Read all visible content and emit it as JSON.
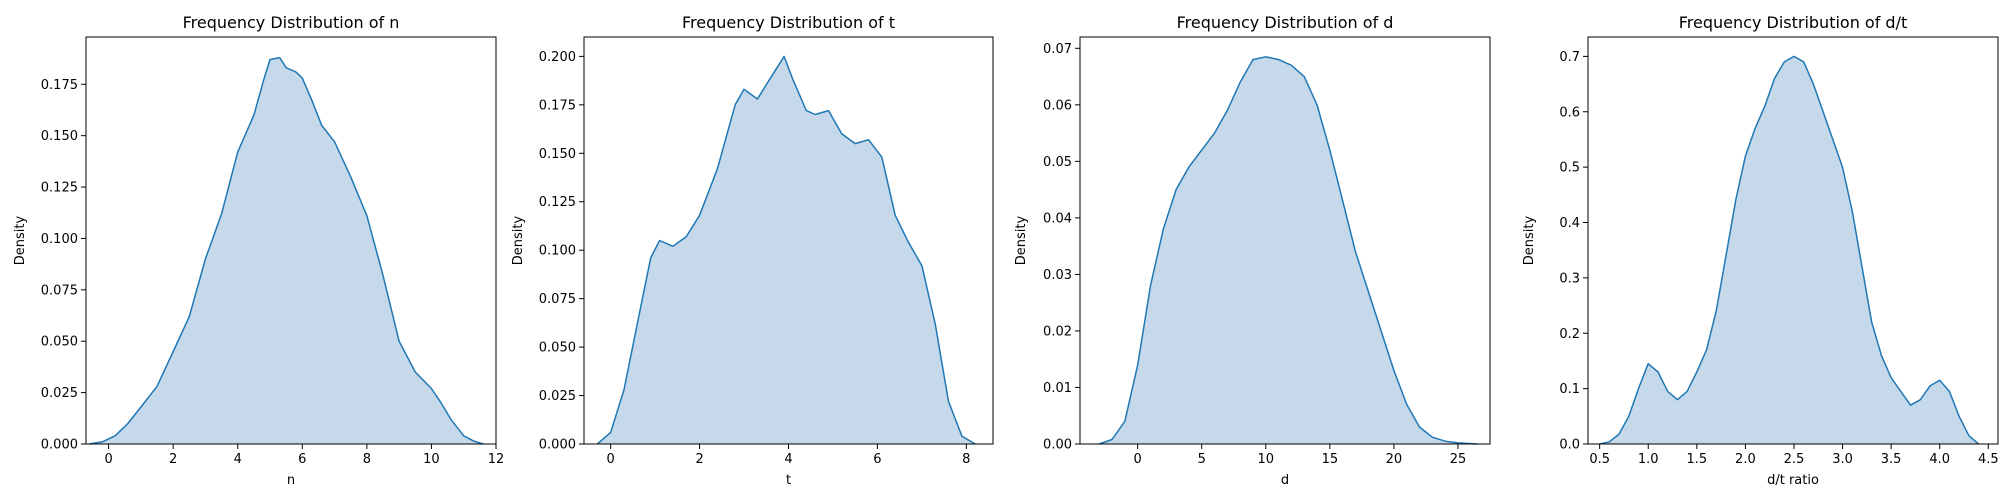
{
  "colors": {
    "line": "#1f77b4",
    "fill": "#c5d9eb",
    "axis": "#000000"
  },
  "chart_data": [
    {
      "type": "area",
      "title": "Frequency Distribution of n",
      "xlabel": "n",
      "ylabel": "Density",
      "xlim": [
        -0.7,
        12.0
      ],
      "ylim": [
        0,
        0.198
      ],
      "xticks": [
        0,
        2,
        4,
        6,
        8,
        10,
        12
      ],
      "xtick_labels": [
        "0",
        "2",
        "4",
        "6",
        "8",
        "10",
        "12"
      ],
      "yticks": [
        0,
        0.025,
        0.05,
        0.075,
        0.1,
        0.125,
        0.15,
        0.175
      ],
      "ytick_labels": [
        "0.000",
        "0.025",
        "0.050",
        "0.075",
        "0.100",
        "0.125",
        "0.150",
        "0.175"
      ],
      "x": [
        -0.6,
        -0.2,
        0.2,
        0.6,
        1.0,
        1.5,
        2.0,
        2.5,
        3.0,
        3.5,
        4.0,
        4.5,
        4.8,
        5.0,
        5.3,
        5.5,
        5.8,
        6.0,
        6.3,
        6.6,
        7.0,
        7.5,
        8.0,
        8.5,
        9.0,
        9.5,
        10.0,
        10.3,
        10.6,
        11.0,
        11.3,
        11.6
      ],
      "y": [
        0.0,
        0.001,
        0.004,
        0.01,
        0.018,
        0.028,
        0.045,
        0.062,
        0.09,
        0.112,
        0.142,
        0.16,
        0.177,
        0.187,
        0.188,
        0.183,
        0.181,
        0.178,
        0.167,
        0.155,
        0.147,
        0.13,
        0.111,
        0.082,
        0.05,
        0.035,
        0.027,
        0.02,
        0.012,
        0.004,
        0.0015,
        0.0
      ]
    },
    {
      "type": "area",
      "title": "Frequency Distribution of t",
      "xlabel": "t",
      "ylabel": "Density",
      "xlim": [
        -0.6,
        8.6
      ],
      "ylim": [
        0,
        0.21
      ],
      "xticks": [
        0,
        2,
        4,
        6,
        8
      ],
      "xtick_labels": [
        "0",
        "2",
        "4",
        "6",
        "8"
      ],
      "yticks": [
        0,
        0.025,
        0.05,
        0.075,
        0.1,
        0.125,
        0.15,
        0.175,
        0.2
      ],
      "ytick_labels": [
        "0.000",
        "0.025",
        "0.050",
        "0.075",
        "0.100",
        "0.125",
        "0.150",
        "0.175",
        "0.200"
      ],
      "x": [
        -0.3,
        0.0,
        0.3,
        0.6,
        0.9,
        1.1,
        1.4,
        1.7,
        2.0,
        2.4,
        2.8,
        3.0,
        3.3,
        3.6,
        3.9,
        4.1,
        4.4,
        4.6,
        4.9,
        5.2,
        5.5,
        5.8,
        6.1,
        6.4,
        6.7,
        7.0,
        7.3,
        7.6,
        7.9,
        8.2
      ],
      "y": [
        0.0,
        0.006,
        0.028,
        0.062,
        0.096,
        0.105,
        0.102,
        0.107,
        0.118,
        0.142,
        0.175,
        0.183,
        0.178,
        0.189,
        0.2,
        0.188,
        0.172,
        0.17,
        0.172,
        0.16,
        0.155,
        0.157,
        0.148,
        0.118,
        0.104,
        0.092,
        0.062,
        0.022,
        0.004,
        0.0
      ]
    },
    {
      "type": "area",
      "title": "Frequency Distribution of d",
      "xlabel": "d",
      "ylabel": "Density",
      "xlim": [
        -4.5,
        27.5
      ],
      "ylim": [
        0,
        0.072
      ],
      "xticks": [
        0,
        5,
        10,
        15,
        20,
        25
      ],
      "xtick_labels": [
        "0",
        "5",
        "10",
        "15",
        "20",
        "25"
      ],
      "yticks": [
        0,
        0.01,
        0.02,
        0.03,
        0.04,
        0.05,
        0.06,
        0.07
      ],
      "ytick_labels": [
        "0.00",
        "0.01",
        "0.02",
        "0.03",
        "0.04",
        "0.05",
        "0.06",
        "0.07"
      ],
      "x": [
        -3.0,
        -2.0,
        -1.0,
        0.0,
        1.0,
        2.0,
        3.0,
        4.0,
        5.0,
        6.0,
        7.0,
        8.0,
        9.0,
        10.0,
        11.0,
        12.0,
        13.0,
        14.0,
        15.0,
        16.0,
        17.0,
        18.0,
        19.0,
        20.0,
        21.0,
        22.0,
        23.0,
        24.0,
        25.0,
        26.5
      ],
      "y": [
        0.0,
        0.0008,
        0.004,
        0.014,
        0.028,
        0.038,
        0.045,
        0.049,
        0.052,
        0.055,
        0.059,
        0.064,
        0.068,
        0.0685,
        0.068,
        0.067,
        0.065,
        0.06,
        0.052,
        0.043,
        0.034,
        0.027,
        0.02,
        0.013,
        0.007,
        0.003,
        0.0012,
        0.0005,
        0.0002,
        0.0
      ]
    },
    {
      "type": "area",
      "title": "Frequency Distribution of d/t",
      "xlabel": "d/t ratio",
      "ylabel": "Density",
      "xlim": [
        0.38,
        4.6
      ],
      "ylim": [
        0,
        0.735
      ],
      "xticks": [
        0.5,
        1.0,
        1.5,
        2.0,
        2.5,
        3.0,
        3.5,
        4.0,
        4.5
      ],
      "xtick_labels": [
        "0.5",
        "1.0",
        "1.5",
        "2.0",
        "2.5",
        "3.0",
        "3.5",
        "4.0",
        "4.5"
      ],
      "yticks": [
        0,
        0.1,
        0.2,
        0.3,
        0.4,
        0.5,
        0.6,
        0.7
      ],
      "ytick_labels": [
        "0.0",
        "0.1",
        "0.2",
        "0.3",
        "0.4",
        "0.5",
        "0.6",
        "0.7"
      ],
      "x": [
        0.5,
        0.6,
        0.7,
        0.8,
        0.9,
        1.0,
        1.1,
        1.2,
        1.3,
        1.4,
        1.5,
        1.6,
        1.7,
        1.8,
        1.9,
        2.0,
        2.1,
        2.2,
        2.3,
        2.4,
        2.5,
        2.6,
        2.7,
        2.8,
        2.9,
        3.0,
        3.1,
        3.2,
        3.3,
        3.4,
        3.5,
        3.6,
        3.7,
        3.8,
        3.9,
        4.0,
        4.1,
        4.2,
        4.3,
        4.4
      ],
      "y": [
        0.0,
        0.004,
        0.018,
        0.05,
        0.1,
        0.145,
        0.13,
        0.095,
        0.08,
        0.095,
        0.13,
        0.17,
        0.24,
        0.34,
        0.44,
        0.52,
        0.57,
        0.61,
        0.66,
        0.69,
        0.7,
        0.69,
        0.65,
        0.6,
        0.55,
        0.5,
        0.42,
        0.32,
        0.22,
        0.16,
        0.12,
        0.095,
        0.07,
        0.08,
        0.105,
        0.115,
        0.095,
        0.05,
        0.015,
        0.0
      ]
    }
  ]
}
